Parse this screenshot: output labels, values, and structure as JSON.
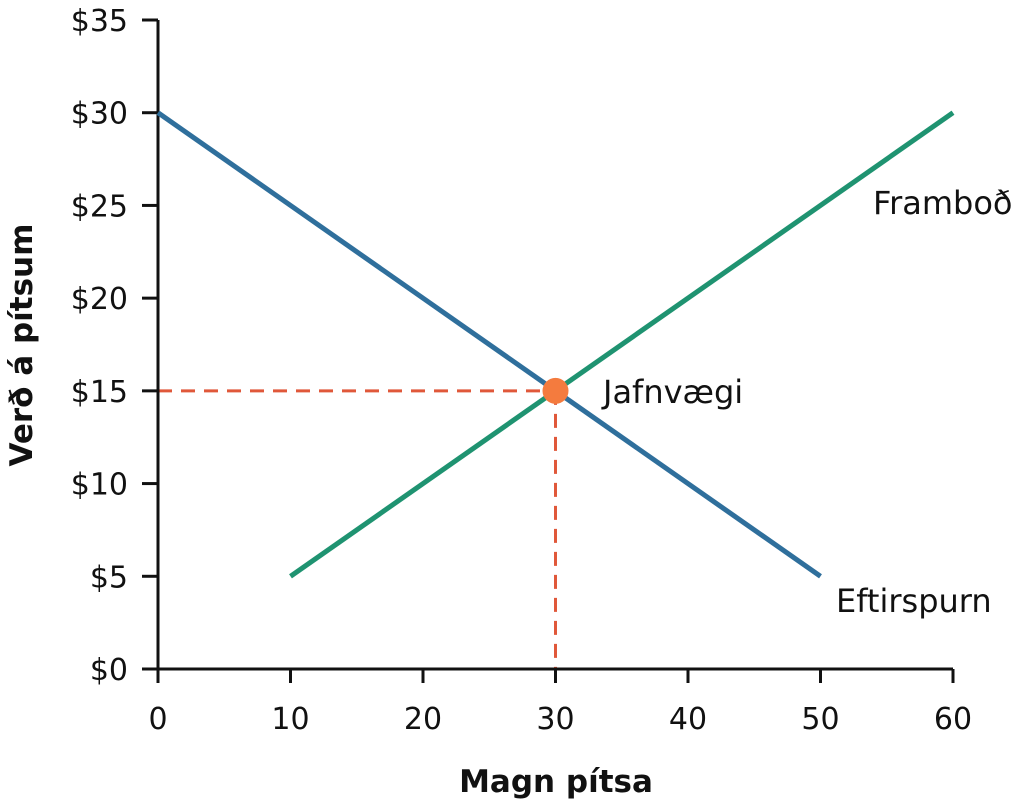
{
  "chart_data": {
    "type": "line",
    "title": "",
    "xlabel": "Magn pítsa",
    "ylabel": "Verð á pítsum",
    "xlim": [
      0,
      60
    ],
    "ylim": [
      0,
      35
    ],
    "x_ticks": [
      0,
      10,
      20,
      30,
      40,
      50,
      60
    ],
    "y_ticks": [
      0,
      5,
      10,
      15,
      20,
      25,
      30,
      35
    ],
    "y_tick_labels": [
      "$0",
      "$5",
      "$10",
      "$15",
      "$20",
      "$25",
      "$30",
      "$35"
    ],
    "grid": false,
    "series": [
      {
        "name": "Eftirspurn",
        "color": "#2f6f9c",
        "points": [
          [
            0,
            30
          ],
          [
            50,
            5
          ]
        ]
      },
      {
        "name": "Framboð",
        "color": "#1f9371",
        "points": [
          [
            10,
            5
          ],
          [
            60,
            30
          ]
        ]
      }
    ],
    "equilibrium": {
      "label": "Jafnvægi",
      "x": 30,
      "y": 15,
      "color": "#f47b3e",
      "guide_color": "#e0583a"
    }
  }
}
